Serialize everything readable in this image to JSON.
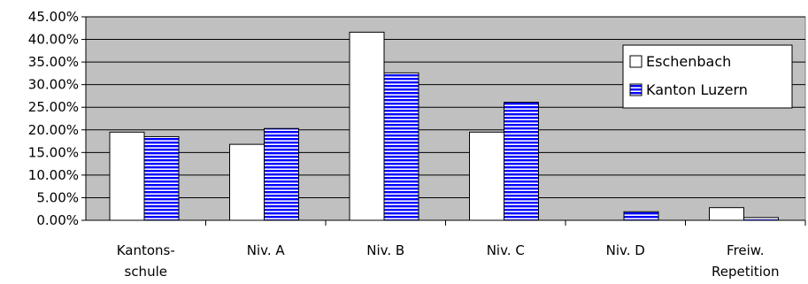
{
  "chart_data": {
    "type": "bar",
    "categories": [
      [
        "Kantons-",
        "schule"
      ],
      [
        "Niv. A"
      ],
      [
        "Niv. B"
      ],
      [
        "Niv. C"
      ],
      [
        "Niv. D"
      ],
      [
        "Freiw.",
        "Repetition"
      ]
    ],
    "series": [
      {
        "name": "Eschenbach",
        "values": [
          19.5,
          16.8,
          41.6,
          19.5,
          0.0,
          2.8
        ],
        "color": "#ffffff",
        "pattern": "solid"
      },
      {
        "name": "Kanton Luzern",
        "values": [
          18.5,
          20.3,
          32.6,
          26.1,
          1.9,
          0.6
        ],
        "color": "#0000ff",
        "pattern": "horizontal-stripes"
      }
    ],
    "ylim": [
      0,
      45
    ],
    "ytick_step": 5,
    "ytick_format": "percent-2-decimals",
    "plot_background": "#c0c0c0",
    "grid": true,
    "legend_position": "right",
    "title": "",
    "xlabel": "",
    "ylabel": ""
  }
}
